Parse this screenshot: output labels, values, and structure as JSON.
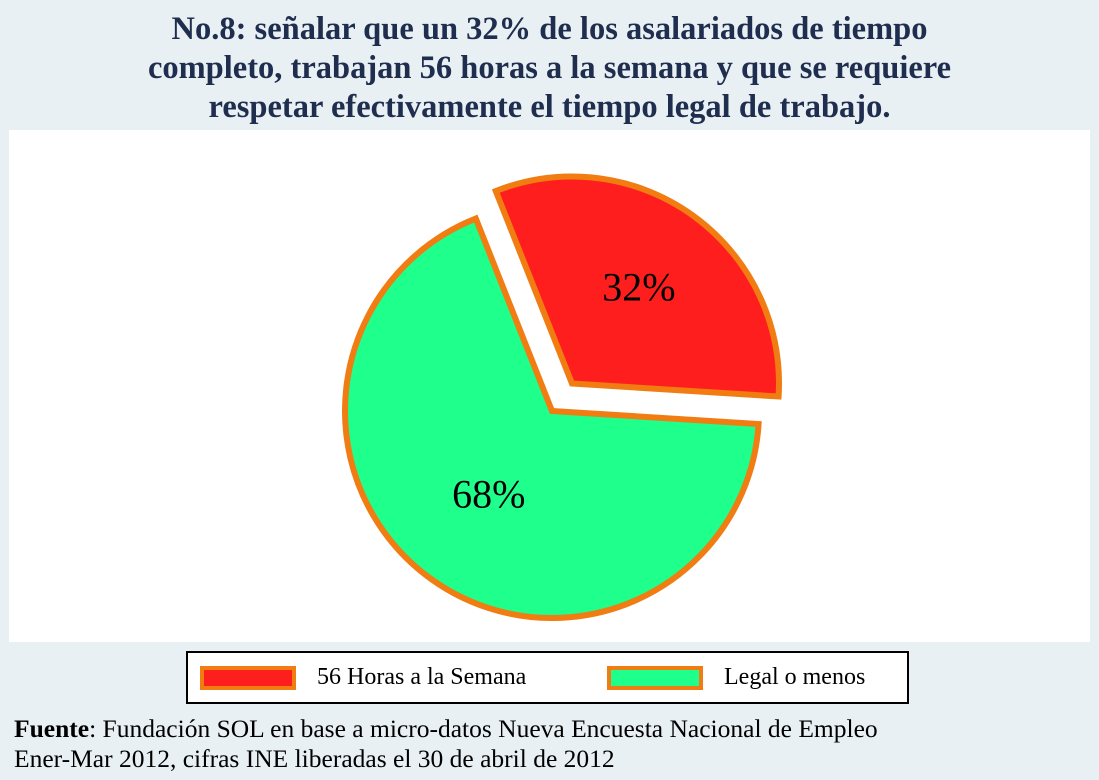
{
  "title": {
    "line1": "No.8: señalar que un 32% de los asalariados de tiempo",
    "line2": "completo, trabajan 56 horas a la semana y que se requiere",
    "line3": "respetar efectivamente el tiempo legal de trabajo."
  },
  "chart_data": {
    "type": "pie",
    "title": "No.8: señalar que un 32% de los asalariados de tiempo completo, trabajan 56 horas a la semana y que se requiere respetar efectivamente el tiempo legal de trabajo.",
    "categories": [
      "56 Horas a la Semana",
      "Legal o menos"
    ],
    "values": [
      32,
      68
    ],
    "data_labels": [
      "32%",
      "68%"
    ],
    "colors": [
      "#ff1e1e",
      "#1eff8c"
    ],
    "edge_color": "#f07c12",
    "exploded": [
      true,
      false
    ],
    "legend_position": "bottom"
  },
  "legend": {
    "items": [
      {
        "label": "56 Horas a la Semana",
        "color": "#ff1e1e"
      },
      {
        "label": "Legal o menos",
        "color": "#1eff8c"
      }
    ]
  },
  "source": {
    "label": "Fuente",
    "line1_rest": ": Fundación SOL en base a micro-datos Nueva Encuesta Nacional de Empleo",
    "line2": "Ener-Mar 2012, cifras INE liberadas el 30 de abril de 2012"
  },
  "colors": {
    "background": "#e8f0f3",
    "plot_background": "#ffffff",
    "title_text": "#1f2d4f"
  }
}
